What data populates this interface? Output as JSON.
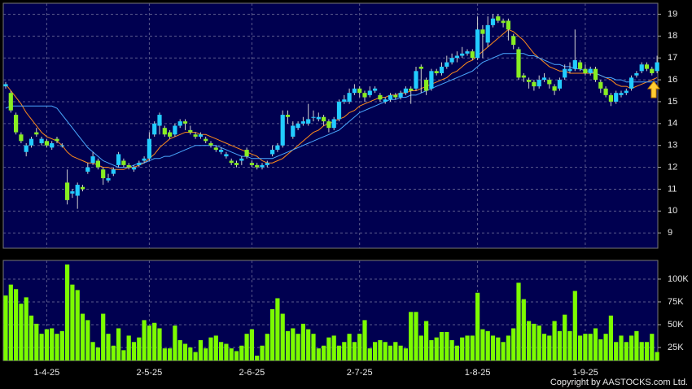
{
  "chart_data": {
    "type": "candlestick",
    "categories": [
      null,
      null,
      null,
      null,
      null,
      null,
      null,
      null,
      "1-4-25",
      null,
      null,
      null,
      null,
      null,
      null,
      null,
      null,
      null,
      null,
      null,
      null,
      null,
      null,
      null,
      null,
      null,
      null,
      null,
      "2-5-25",
      null,
      null,
      null,
      null,
      null,
      null,
      null,
      null,
      null,
      null,
      null,
      null,
      null,
      null,
      null,
      null,
      null,
      null,
      null,
      "2-6-25",
      null,
      null,
      null,
      null,
      null,
      null,
      null,
      null,
      null,
      null,
      null,
      null,
      null,
      null,
      null,
      null,
      null,
      null,
      null,
      null,
      "2-7-25",
      null,
      null,
      null,
      null,
      null,
      null,
      null,
      null,
      null,
      null,
      null,
      null,
      null,
      null,
      null,
      null,
      null,
      null,
      null,
      null,
      null,
      null,
      "1-8-25",
      null,
      null,
      null,
      null,
      null,
      null,
      null,
      null,
      null,
      null,
      null,
      null,
      null,
      null,
      null,
      null,
      null,
      null,
      null,
      null,
      "1-9-25",
      null,
      null,
      null,
      null,
      null,
      null,
      null,
      null,
      null,
      null,
      null,
      null,
      null,
      null
    ],
    "ohlc": [
      [
        15.7,
        15.9,
        15.6,
        15.8
      ],
      [
        15.4,
        15.5,
        14.5,
        14.6
      ],
      [
        14.4,
        14.5,
        13.5,
        13.6
      ],
      [
        13.5,
        13.6,
        13.1,
        13.2
      ],
      [
        12.7,
        13.1,
        12.5,
        13.0
      ],
      [
        13.0,
        13.4,
        12.9,
        13.3
      ],
      [
        13.6,
        13.8,
        13.4,
        13.5
      ],
      [
        13.1,
        13.4,
        13.0,
        13.3
      ],
      [
        13.2,
        13.3,
        12.9,
        13.0
      ],
      [
        12.9,
        13.2,
        12.8,
        13.1
      ],
      [
        13.3,
        13.4,
        13.1,
        13.2
      ],
      [
        13.0,
        13.1,
        12.9,
        13.0
      ],
      [
        11.3,
        11.9,
        10.3,
        10.5
      ],
      [
        10.8,
        11.0,
        10.6,
        10.9
      ],
      [
        10.7,
        11.3,
        10.1,
        11.2
      ],
      [
        11.1,
        11.2,
        10.9,
        11.0
      ],
      [
        11.8,
        12.2,
        11.7,
        12.0
      ],
      [
        12.2,
        12.7,
        12.1,
        12.5
      ],
      [
        12.3,
        12.4,
        11.9,
        12.0
      ],
      [
        11.9,
        12.0,
        11.2,
        11.5
      ],
      [
        11.4,
        11.7,
        11.3,
        11.5
      ],
      [
        11.7,
        12.0,
        11.6,
        11.9
      ],
      [
        12.1,
        12.7,
        12.0,
        12.6
      ],
      [
        12.3,
        12.4,
        12.0,
        12.1
      ],
      [
        12.1,
        12.2,
        11.9,
        12.0
      ],
      [
        11.9,
        12.1,
        11.8,
        12.0
      ],
      [
        12.1,
        12.3,
        12.0,
        12.2
      ],
      [
        12.3,
        12.5,
        12.2,
        12.4
      ],
      [
        12.4,
        13.6,
        12.3,
        13.3
      ],
      [
        13.5,
        14.1,
        13.4,
        14.0
      ],
      [
        13.9,
        14.5,
        13.5,
        14.4
      ],
      [
        13.8,
        13.9,
        13.4,
        13.5
      ],
      [
        13.6,
        13.7,
        13.3,
        13.4
      ],
      [
        13.5,
        14.0,
        13.4,
        13.9
      ],
      [
        13.9,
        14.2,
        13.8,
        14.1
      ],
      [
        14.1,
        14.2,
        13.7,
        14.0
      ],
      [
        13.7,
        13.9,
        13.5,
        13.6
      ],
      [
        13.5,
        13.6,
        13.3,
        13.4
      ],
      [
        13.4,
        13.6,
        13.3,
        13.5
      ],
      [
        13.3,
        13.4,
        13.1,
        13.2
      ],
      [
        13.1,
        13.2,
        12.9,
        13.0
      ],
      [
        12.9,
        13.0,
        12.7,
        12.8
      ],
      [
        12.7,
        12.9,
        12.6,
        12.8
      ],
      [
        12.5,
        12.7,
        12.4,
        12.6
      ],
      [
        12.3,
        12.4,
        12.1,
        12.2
      ],
      [
        12.2,
        12.3,
        12.0,
        12.1
      ],
      [
        12.3,
        12.5,
        12.1,
        12.4
      ],
      [
        12.8,
        12.9,
        12.4,
        12.5
      ],
      [
        12.2,
        12.3,
        12.0,
        12.1
      ],
      [
        12.1,
        12.2,
        11.9,
        12.0
      ],
      [
        12.0,
        12.2,
        11.9,
        12.1
      ],
      [
        12.1,
        12.3,
        12.0,
        12.2
      ],
      [
        12.6,
        13.0,
        12.5,
        12.8
      ],
      [
        12.8,
        13.1,
        12.7,
        13.0
      ],
      [
        13.0,
        14.6,
        12.9,
        14.4
      ],
      [
        14.4,
        14.6,
        14.0,
        14.3
      ],
      [
        13.4,
        14.1,
        13.3,
        13.9
      ],
      [
        13.8,
        14.1,
        13.7,
        14.0
      ],
      [
        14.0,
        14.3,
        13.9,
        14.1
      ],
      [
        14.0,
        14.9,
        13.9,
        14.2
      ],
      [
        14.3,
        14.6,
        14.1,
        14.3
      ],
      [
        14.2,
        14.5,
        14.1,
        14.3
      ],
      [
        14.3,
        14.4,
        13.9,
        14.1
      ],
      [
        14.1,
        14.2,
        13.6,
        13.8
      ],
      [
        13.8,
        14.3,
        13.7,
        14.2
      ],
      [
        14.2,
        15.1,
        14.1,
        15.0
      ],
      [
        15.0,
        15.3,
        14.9,
        15.1
      ],
      [
        15.0,
        15.6,
        14.9,
        15.4
      ],
      [
        15.4,
        15.8,
        15.3,
        15.6
      ],
      [
        15.6,
        15.7,
        15.2,
        15.4
      ],
      [
        15.4,
        15.5,
        15.0,
        15.2
      ],
      [
        15.3,
        15.7,
        15.2,
        15.5
      ],
      [
        15.5,
        15.7,
        15.4,
        15.6
      ],
      [
        15.3,
        15.4,
        15.0,
        15.1
      ],
      [
        15.0,
        15.2,
        14.9,
        15.1
      ],
      [
        15.1,
        15.4,
        15.0,
        15.3
      ],
      [
        15.3,
        15.4,
        15.1,
        15.2
      ],
      [
        15.2,
        15.5,
        15.1,
        15.4
      ],
      [
        15.4,
        15.7,
        15.3,
        15.6
      ],
      [
        15.6,
        15.7,
        14.9,
        15.5
      ],
      [
        15.6,
        16.6,
        15.5,
        16.4
      ],
      [
        16.6,
        16.7,
        15.4,
        16.5
      ],
      [
        16.0,
        16.1,
        15.3,
        15.5
      ],
      [
        15.6,
        16.5,
        15.5,
        16.4
      ],
      [
        16.4,
        16.5,
        16.2,
        16.3
      ],
      [
        16.3,
        16.8,
        16.2,
        16.6
      ],
      [
        16.6,
        17.1,
        16.5,
        16.8
      ],
      [
        16.8,
        17.2,
        16.7,
        17.0
      ],
      [
        17.0,
        17.3,
        16.8,
        17.1
      ],
      [
        17.1,
        17.5,
        17.0,
        17.2
      ],
      [
        17.2,
        17.4,
        17.1,
        17.3
      ],
      [
        17.3,
        17.4,
        16.9,
        17.0
      ],
      [
        17.0,
        18.9,
        16.9,
        18.3
      ],
      [
        18.3,
        18.5,
        17.0,
        18.1
      ],
      [
        17.7,
        18.9,
        17.5,
        18.5
      ],
      [
        18.5,
        19.0,
        18.4,
        18.8
      ],
      [
        18.9,
        19.0,
        18.6,
        18.7
      ],
      [
        18.7,
        18.8,
        18.4,
        18.6
      ],
      [
        18.7,
        18.8,
        17.8,
        18.3
      ],
      [
        18.0,
        18.1,
        17.4,
        17.6
      ],
      [
        17.4,
        17.5,
        16.0,
        16.1
      ],
      [
        16.2,
        16.3,
        15.9,
        16.1
      ],
      [
        16.0,
        16.1,
        15.6,
        15.9
      ],
      [
        15.9,
        16.0,
        15.5,
        15.7
      ],
      [
        15.7,
        16.2,
        15.6,
        16.0
      ],
      [
        16.0,
        16.3,
        15.9,
        16.1
      ],
      [
        16.0,
        16.1,
        15.6,
        15.8
      ],
      [
        15.7,
        15.8,
        15.3,
        15.5
      ],
      [
        15.6,
        16.1,
        15.5,
        16.0
      ],
      [
        16.1,
        16.7,
        16.0,
        16.5
      ],
      [
        16.4,
        16.8,
        16.3,
        16.5
      ],
      [
        16.5,
        18.3,
        16.4,
        16.9
      ],
      [
        16.8,
        16.9,
        16.4,
        16.5
      ],
      [
        16.5,
        16.7,
        16.2,
        16.3
      ],
      [
        16.3,
        16.6,
        16.2,
        16.5
      ],
      [
        16.5,
        16.6,
        15.9,
        16.0
      ],
      [
        15.9,
        16.0,
        15.4,
        15.6
      ],
      [
        15.6,
        15.7,
        15.2,
        15.3
      ],
      [
        15.3,
        15.4,
        14.8,
        15.0
      ],
      [
        15.0,
        15.5,
        14.9,
        15.4
      ],
      [
        15.3,
        15.5,
        15.2,
        15.4
      ],
      [
        15.4,
        15.6,
        15.3,
        15.5
      ],
      [
        15.6,
        16.2,
        15.5,
        16.1
      ],
      [
        16.2,
        16.4,
        16.1,
        16.3
      ],
      [
        16.4,
        16.8,
        16.3,
        16.7
      ],
      [
        16.7,
        16.8,
        16.4,
        16.5
      ],
      [
        16.5,
        16.6,
        16.2,
        16.3
      ],
      [
        16.4,
        17.1,
        16.3,
        16.8
      ]
    ],
    "up_color": "#22ccff",
    "down_color": "#88ee22",
    "moving_averages": [
      {
        "color": "#ff8c1a",
        "values": [
          15.8,
          15.5,
          15.2,
          14.9,
          14.5,
          14.2,
          13.9,
          13.6,
          13.4,
          13.3,
          13.2,
          13.0,
          12.7,
          12.5,
          12.4,
          12.3,
          12.2,
          12.2,
          12.1,
          12.0,
          12.0,
          11.9,
          11.9,
          11.9,
          12.0,
          12.0,
          12.1,
          12.2,
          12.4,
          12.6,
          12.9,
          13.1,
          13.3,
          13.4,
          13.5,
          13.6,
          13.6,
          13.6,
          13.5,
          13.5,
          13.4,
          13.3,
          13.2,
          13.1,
          13.0,
          12.9,
          12.8,
          12.7,
          12.6,
          12.5,
          12.3,
          12.2,
          12.2,
          12.3,
          12.4,
          12.6,
          12.8,
          13.0,
          13.2,
          13.4,
          13.6,
          13.7,
          13.9,
          14.0,
          14.1,
          14.2,
          14.3,
          14.5,
          14.6,
          14.8,
          14.9,
          15.0,
          15.1,
          15.2,
          15.2,
          15.3,
          15.3,
          15.4,
          15.4,
          15.5,
          15.5,
          15.6,
          15.7,
          15.8,
          15.9,
          16.0,
          16.1,
          16.3,
          16.4,
          16.6,
          16.8,
          16.9,
          17.1,
          17.3,
          17.5,
          17.7,
          17.9,
          18.1,
          18.3,
          18.2,
          18.0,
          17.8,
          17.5,
          17.2,
          17.0,
          16.8,
          16.6,
          16.5,
          16.4,
          16.4,
          16.3,
          16.3,
          16.3,
          16.3,
          16.3,
          16.3,
          16.2,
          16.1,
          16.0,
          15.8,
          15.7,
          15.7,
          15.6,
          15.7,
          15.8,
          15.9,
          16.0,
          16.1
        ]
      },
      {
        "color": "#4aa8ff",
        "values": [
          14.7,
          14.8,
          14.8,
          14.8,
          14.8,
          14.8,
          14.8,
          14.8,
          14.8,
          14.8,
          14.7,
          14.4,
          14.1,
          13.8,
          13.5,
          13.2,
          12.9,
          12.7,
          12.5,
          12.3,
          12.2,
          12.1,
          12.0,
          12.0,
          12.0,
          12.1,
          12.2,
          12.2,
          12.3,
          12.4,
          12.4,
          12.5,
          12.5,
          12.6,
          12.7,
          12.8,
          12.9,
          13.0,
          13.0,
          13.0,
          13.0,
          13.0,
          12.9,
          12.8,
          12.7,
          12.6,
          12.5,
          12.5,
          12.4,
          12.4,
          12.4,
          12.4,
          12.4,
          12.5,
          12.6,
          12.7,
          12.8,
          12.9,
          13.0,
          13.1,
          13.2,
          13.3,
          13.4,
          13.5,
          13.6,
          13.7,
          13.9,
          14.1,
          14.3,
          14.5,
          14.6,
          14.7,
          14.8,
          14.9,
          15.0,
          15.1,
          15.1,
          15.2,
          15.2,
          15.3,
          15.3,
          15.4,
          15.5,
          15.6,
          15.7,
          15.8,
          15.9,
          16.0,
          16.1,
          16.2,
          16.3,
          16.4,
          16.6,
          16.8,
          16.9,
          17.0,
          17.1,
          17.2,
          17.2,
          17.2,
          17.2,
          17.2,
          17.1,
          17.1,
          17.0,
          16.9,
          16.8,
          16.7,
          16.7,
          16.6,
          16.6,
          16.5,
          16.5,
          16.4,
          16.4,
          16.3,
          16.2,
          16.1,
          16.1,
          16.0,
          16.0,
          15.9,
          15.9,
          15.9,
          15.9,
          15.9,
          15.9,
          15.9
        ]
      }
    ],
    "ylim": [
      8.3,
      19.5
    ],
    "yticks": [
      9,
      10,
      11,
      12,
      13,
      14,
      15,
      16,
      17,
      18,
      19
    ],
    "grid": true,
    "volume": {
      "color": "#7cfc00",
      "ylim": [
        10700,
        120500
      ],
      "yticks": [
        {
          "value": 25000,
          "label": "25K"
        },
        {
          "value": 50000,
          "label": "50K"
        },
        {
          "value": 75000,
          "label": "75K"
        },
        {
          "value": 100000,
          "label": "100K"
        }
      ],
      "values": [
        82000,
        94000,
        89000,
        73000,
        80000,
        60000,
        51000,
        40000,
        45000,
        46000,
        40000,
        43000,
        116000,
        94000,
        88000,
        62000,
        55000,
        31000,
        25000,
        62000,
        40000,
        27000,
        46000,
        22000,
        38000,
        31000,
        36000,
        55000,
        49000,
        52000,
        46000,
        24000,
        24000,
        49000,
        33000,
        29000,
        25000,
        20000,
        33000,
        24000,
        36000,
        38000,
        31000,
        29000,
        24000,
        21000,
        27000,
        40000,
        45000,
        16000,
        27000,
        40000,
        67000,
        79000,
        62000,
        43000,
        46000,
        40000,
        51000,
        45000,
        40000,
        24000,
        27000,
        36000,
        38000,
        27000,
        31000,
        40000,
        31000,
        40000,
        55000,
        24000,
        31000,
        33000,
        31000,
        27000,
        31000,
        27000,
        24000,
        64000,
        64000,
        38000,
        54000,
        33000,
        36000,
        42000,
        42000,
        33000,
        27000,
        36000,
        38000,
        38000,
        85000,
        45000,
        43000,
        38000,
        36000,
        31000,
        38000,
        46000,
        96000,
        78000,
        54000,
        51000,
        49000,
        40000,
        38000,
        54000,
        43000,
        61000,
        43000,
        87000,
        38000,
        40000,
        40000,
        46000,
        34000,
        40000,
        60000,
        31000,
        38000,
        31000,
        38000,
        43000,
        31000,
        31000,
        40000,
        20000
      ]
    }
  },
  "footer": "Copyright by AASTOCKS.com Ltd."
}
